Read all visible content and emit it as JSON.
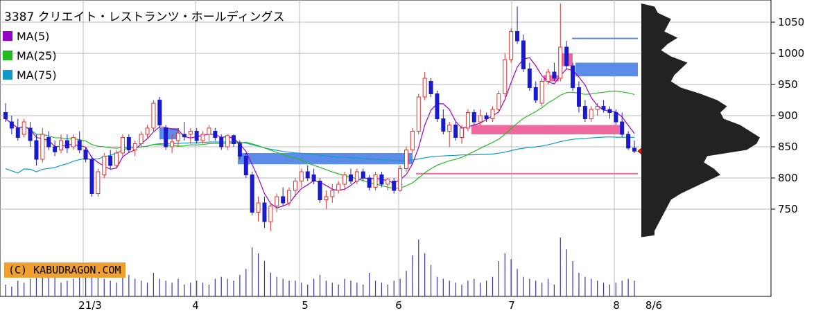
{
  "title": "3387 クリエイト・レストランツ・ホールディングス",
  "legend": [
    {
      "label": "MA(5)",
      "color": "#9900cc"
    },
    {
      "label": "MA(25)",
      "color": "#22bb22"
    },
    {
      "label": "MA(75)",
      "color": "#1199cc"
    }
  ],
  "copyright": "(C) KABUDRAGON.COM",
  "chart_data": {
    "type": "candlestick",
    "y_ticks": [
      "1050",
      "1000",
      "950",
      "900",
      "850",
      "800",
      "750"
    ],
    "x_ticks": [
      "21/3",
      "4",
      "5",
      "6",
      "7",
      "8",
      "8/6"
    ],
    "ylim": [
      702,
      1080
    ],
    "last_price": 843,
    "candles": [
      {
        "o": 905,
        "h": 920,
        "l": 890,
        "c": 895
      },
      {
        "o": 890,
        "h": 900,
        "l": 870,
        "c": 880
      },
      {
        "o": 880,
        "h": 895,
        "l": 860,
        "c": 865
      },
      {
        "o": 870,
        "h": 895,
        "l": 865,
        "c": 890
      },
      {
        "o": 880,
        "h": 890,
        "l": 850,
        "c": 860
      },
      {
        "o": 860,
        "h": 870,
        "l": 820,
        "c": 830
      },
      {
        "o": 830,
        "h": 880,
        "l": 825,
        "c": 870
      },
      {
        "o": 865,
        "h": 875,
        "l": 845,
        "c": 850
      },
      {
        "o": 850,
        "h": 860,
        "l": 835,
        "c": 842
      },
      {
        "o": 845,
        "h": 870,
        "l": 840,
        "c": 860
      },
      {
        "o": 860,
        "h": 870,
        "l": 840,
        "c": 848
      },
      {
        "o": 850,
        "h": 870,
        "l": 845,
        "c": 865
      },
      {
        "o": 860,
        "h": 875,
        "l": 840,
        "c": 845
      },
      {
        "o": 845,
        "h": 850,
        "l": 825,
        "c": 830
      },
      {
        "o": 830,
        "h": 835,
        "l": 770,
        "c": 775
      },
      {
        "o": 775,
        "h": 815,
        "l": 770,
        "c": 810
      },
      {
        "o": 805,
        "h": 840,
        "l": 800,
        "c": 835
      },
      {
        "o": 835,
        "h": 845,
        "l": 815,
        "c": 820
      },
      {
        "o": 820,
        "h": 845,
        "l": 815,
        "c": 840
      },
      {
        "o": 840,
        "h": 870,
        "l": 835,
        "c": 865
      },
      {
        "o": 865,
        "h": 870,
        "l": 840,
        "c": 845
      },
      {
        "o": 845,
        "h": 860,
        "l": 835,
        "c": 855
      },
      {
        "o": 855,
        "h": 875,
        "l": 850,
        "c": 870
      },
      {
        "o": 870,
        "h": 885,
        "l": 865,
        "c": 880
      },
      {
        "o": 880,
        "h": 925,
        "l": 875,
        "c": 920
      },
      {
        "o": 925,
        "h": 930,
        "l": 880,
        "c": 885
      },
      {
        "o": 880,
        "h": 885,
        "l": 845,
        "c": 850
      },
      {
        "o": 850,
        "h": 870,
        "l": 840,
        "c": 858
      },
      {
        "o": 860,
        "h": 880,
        "l": 850,
        "c": 872
      },
      {
        "o": 870,
        "h": 890,
        "l": 860,
        "c": 866
      },
      {
        "o": 870,
        "h": 880,
        "l": 855,
        "c": 875
      },
      {
        "o": 875,
        "h": 880,
        "l": 855,
        "c": 860
      },
      {
        "o": 860,
        "h": 875,
        "l": 855,
        "c": 870
      },
      {
        "o": 870,
        "h": 885,
        "l": 860,
        "c": 880
      },
      {
        "o": 875,
        "h": 880,
        "l": 860,
        "c": 865
      },
      {
        "o": 865,
        "h": 870,
        "l": 845,
        "c": 850
      },
      {
        "o": 850,
        "h": 870,
        "l": 845,
        "c": 868
      },
      {
        "o": 868,
        "h": 870,
        "l": 850,
        "c": 855
      },
      {
        "o": 855,
        "h": 860,
        "l": 830,
        "c": 835
      },
      {
        "o": 835,
        "h": 840,
        "l": 800,
        "c": 805
      },
      {
        "o": 805,
        "h": 810,
        "l": 740,
        "c": 745
      },
      {
        "o": 745,
        "h": 770,
        "l": 730,
        "c": 760
      },
      {
        "o": 760,
        "h": 770,
        "l": 720,
        "c": 730
      },
      {
        "o": 730,
        "h": 760,
        "l": 715,
        "c": 755
      },
      {
        "o": 755,
        "h": 775,
        "l": 745,
        "c": 770
      },
      {
        "o": 770,
        "h": 785,
        "l": 755,
        "c": 760
      },
      {
        "o": 760,
        "h": 785,
        "l": 755,
        "c": 780
      },
      {
        "o": 780,
        "h": 800,
        "l": 770,
        "c": 795
      },
      {
        "o": 795,
        "h": 815,
        "l": 785,
        "c": 810
      },
      {
        "o": 810,
        "h": 820,
        "l": 795,
        "c": 800
      },
      {
        "o": 805,
        "h": 815,
        "l": 790,
        "c": 795
      },
      {
        "o": 795,
        "h": 800,
        "l": 760,
        "c": 765
      },
      {
        "o": 765,
        "h": 780,
        "l": 750,
        "c": 770
      },
      {
        "o": 770,
        "h": 790,
        "l": 760,
        "c": 780
      },
      {
        "o": 780,
        "h": 795,
        "l": 775,
        "c": 790
      },
      {
        "o": 790,
        "h": 810,
        "l": 780,
        "c": 805
      },
      {
        "o": 805,
        "h": 815,
        "l": 790,
        "c": 795
      },
      {
        "o": 795,
        "h": 815,
        "l": 790,
        "c": 810
      },
      {
        "o": 810,
        "h": 815,
        "l": 795,
        "c": 800
      },
      {
        "o": 800,
        "h": 805,
        "l": 780,
        "c": 785
      },
      {
        "o": 785,
        "h": 810,
        "l": 780,
        "c": 805
      },
      {
        "o": 805,
        "h": 810,
        "l": 785,
        "c": 790
      },
      {
        "o": 790,
        "h": 800,
        "l": 780,
        "c": 798
      },
      {
        "o": 795,
        "h": 800,
        "l": 775,
        "c": 780
      },
      {
        "o": 780,
        "h": 820,
        "l": 778,
        "c": 815
      },
      {
        "o": 815,
        "h": 850,
        "l": 810,
        "c": 845
      },
      {
        "o": 845,
        "h": 880,
        "l": 840,
        "c": 875
      },
      {
        "o": 875,
        "h": 935,
        "l": 870,
        "c": 930
      },
      {
        "o": 930,
        "h": 970,
        "l": 925,
        "c": 960
      },
      {
        "o": 955,
        "h": 960,
        "l": 930,
        "c": 935
      },
      {
        "o": 935,
        "h": 940,
        "l": 890,
        "c": 895
      },
      {
        "o": 895,
        "h": 910,
        "l": 870,
        "c": 875
      },
      {
        "o": 875,
        "h": 890,
        "l": 850,
        "c": 885
      },
      {
        "o": 885,
        "h": 890,
        "l": 860,
        "c": 865
      },
      {
        "o": 865,
        "h": 885,
        "l": 855,
        "c": 880
      },
      {
        "o": 880,
        "h": 910,
        "l": 875,
        "c": 905
      },
      {
        "o": 905,
        "h": 910,
        "l": 885,
        "c": 890
      },
      {
        "o": 890,
        "h": 910,
        "l": 885,
        "c": 900
      },
      {
        "o": 900,
        "h": 905,
        "l": 890,
        "c": 895
      },
      {
        "o": 895,
        "h": 915,
        "l": 890,
        "c": 910
      },
      {
        "o": 910,
        "h": 940,
        "l": 905,
        "c": 935
      },
      {
        "o": 935,
        "h": 1000,
        "l": 930,
        "c": 990
      },
      {
        "o": 990,
        "h": 1040,
        "l": 985,
        "c": 1035
      },
      {
        "o": 1035,
        "h": 1075,
        "l": 1015,
        "c": 1020
      },
      {
        "o": 1020,
        "h": 1030,
        "l": 970,
        "c": 975
      },
      {
        "o": 975,
        "h": 985,
        "l": 940,
        "c": 945
      },
      {
        "o": 945,
        "h": 955,
        "l": 920,
        "c": 925
      },
      {
        "o": 920,
        "h": 960,
        "l": 915,
        "c": 955
      },
      {
        "o": 955,
        "h": 975,
        "l": 950,
        "c": 970
      },
      {
        "o": 970,
        "h": 985,
        "l": 955,
        "c": 960
      },
      {
        "o": 960,
        "h": 1080,
        "l": 955,
        "c": 1010
      },
      {
        "o": 1010,
        "h": 1020,
        "l": 975,
        "c": 980
      },
      {
        "o": 980,
        "h": 985,
        "l": 940,
        "c": 945
      },
      {
        "o": 945,
        "h": 955,
        "l": 905,
        "c": 915
      },
      {
        "o": 915,
        "h": 925,
        "l": 890,
        "c": 895
      },
      {
        "o": 895,
        "h": 915,
        "l": 890,
        "c": 910
      },
      {
        "o": 910,
        "h": 920,
        "l": 900,
        "c": 915
      },
      {
        "o": 915,
        "h": 925,
        "l": 905,
        "c": 910
      },
      {
        "o": 910,
        "h": 915,
        "l": 895,
        "c": 905
      },
      {
        "o": 905,
        "h": 910,
        "l": 885,
        "c": 890
      },
      {
        "o": 890,
        "h": 905,
        "l": 865,
        "c": 870
      },
      {
        "o": 870,
        "h": 875,
        "l": 845,
        "c": 848
      },
      {
        "o": 848,
        "h": 860,
        "l": 840,
        "c": 843
      }
    ],
    "volume": [
      6,
      5,
      8,
      7,
      9,
      10,
      14,
      12,
      11,
      7,
      8,
      9,
      10,
      11,
      13,
      12,
      9,
      8,
      7,
      10,
      11,
      9,
      8,
      7,
      12,
      9,
      8,
      7,
      9,
      6,
      7,
      8,
      7,
      6,
      9,
      10,
      9,
      8,
      11,
      14,
      25,
      22,
      18,
      12,
      10,
      9,
      8,
      8,
      7,
      6,
      9,
      11,
      8,
      7,
      6,
      9,
      8,
      7,
      6,
      12,
      8,
      7,
      6,
      8,
      9,
      13,
      21,
      29,
      22,
      16,
      10,
      9,
      8,
      7,
      6,
      8,
      9,
      7,
      8,
      10,
      18,
      22,
      19,
      14,
      10,
      9,
      8,
      7,
      9,
      6,
      30,
      24,
      18,
      12,
      10,
      9,
      8,
      7,
      6,
      7,
      8,
      9,
      8
    ]
  }
}
